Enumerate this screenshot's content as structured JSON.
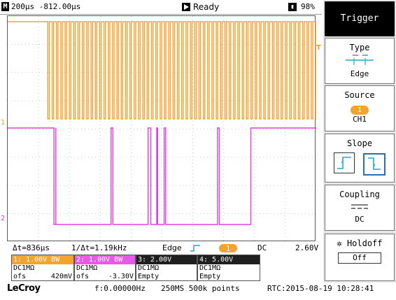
{
  "topbar": {
    "mode_icon": "M",
    "timebase": "200µs -812.00µs",
    "run_icon": "play-icon",
    "status": "Ready",
    "battery_icon": "battery-icon",
    "battery": "98%"
  },
  "markers": {
    "ch1": "1",
    "ch2": "2",
    "trigger_level": "T"
  },
  "measurements": {
    "delta_t": "Δt=836µs",
    "inv_delta_t": "1/Δt=1.19kHz",
    "trigger_type": "Edge",
    "trigger_source": "1",
    "coupling": "DC",
    "trigger_level": "2.60V"
  },
  "channels": [
    {
      "head": "1: 1.00V  BW",
      "coupling": "DC1MΩ",
      "offset_label": "ofs",
      "offset": "420mV"
    },
    {
      "head": "2: 1.00V  BW",
      "coupling": "DC1MΩ",
      "offset_label": "ofs",
      "offset": "-3.30V"
    },
    {
      "head": "3: 2.00V",
      "coupling": "DC1MΩ",
      "offset_label": "Empty",
      "offset": ""
    },
    {
      "head": "4: 5.00V",
      "coupling": "DC1MΩ",
      "offset_label": "Empty",
      "offset": ""
    }
  ],
  "bottombar": {
    "brand": "LeCroy",
    "frequency": "f:0.00000Hz",
    "sampling": "250MS 500k points",
    "rtc": "RTC:2015-08-19 10:28:41"
  },
  "side_menu": {
    "title": "Trigger",
    "type": {
      "label": "Type",
      "value": "Edge"
    },
    "source": {
      "label": "Source",
      "badge": "1",
      "value": "CH1"
    },
    "slope": {
      "label": "Slope"
    },
    "coupling": {
      "label": "Coupling",
      "value": "DC"
    },
    "holdoff": {
      "label": "Holdoff",
      "value": "Off"
    }
  },
  "colors": {
    "ch1": "#f4a32f",
    "ch2": "#e040e0",
    "grid": "#bdbdbd"
  },
  "waveforms": {
    "ch1": {
      "idle_high_until_us": -740,
      "pulse_period_us": 28,
      "pulse_high_us": 18
    },
    "ch2_pulses_us": [
      {
        "low_start": -700,
        "low_end": -688
      },
      {
        "low_start": -688,
        "low_end": -330
      },
      {
        "low_start": -318,
        "low_end": -90
      },
      {
        "low_start": -72,
        "low_end": -34
      },
      {
        "low_start": -28,
        "low_end": 14
      },
      {
        "low_start": 24,
        "low_end": 360
      },
      {
        "low_start": 372,
        "low_end": 576
      }
    ]
  }
}
